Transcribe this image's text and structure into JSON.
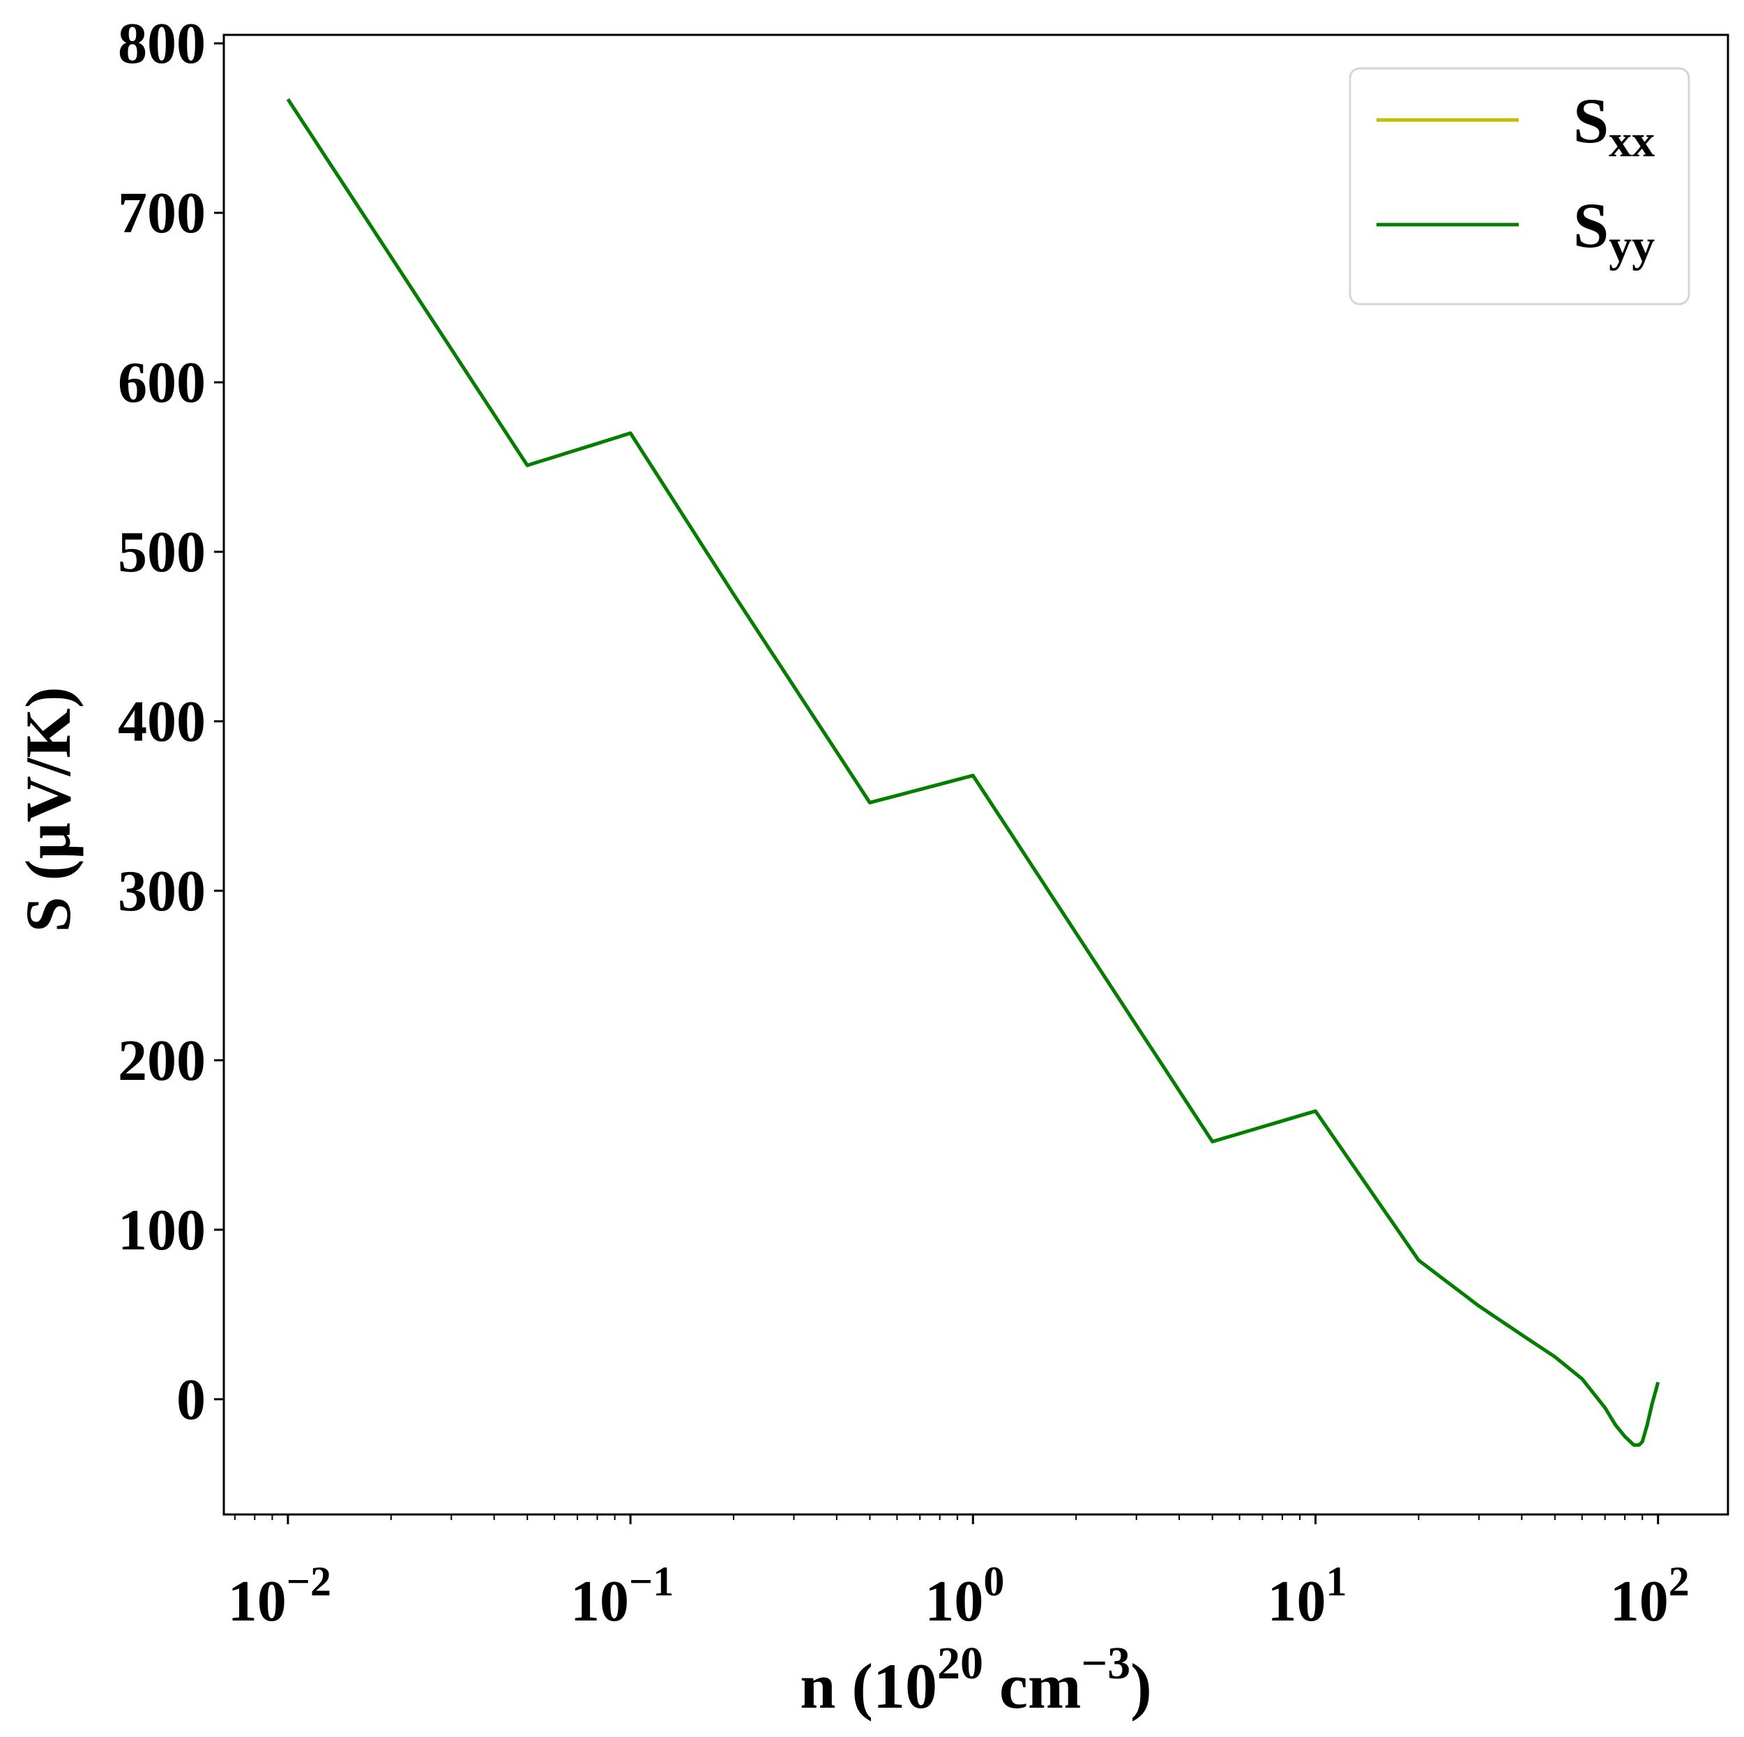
{
  "chart_data": {
    "type": "line",
    "x_scale": "log",
    "xlim": [
      0.0065,
      160
    ],
    "ylim": [
      -68,
      805
    ],
    "x_ticks": [
      {
        "value": 0.01,
        "base": "10",
        "exp": "−2"
      },
      {
        "value": 0.1,
        "base": "10",
        "exp": "−1"
      },
      {
        "value": 1,
        "base": "10",
        "exp": "0"
      },
      {
        "value": 10,
        "base": "10",
        "exp": "1"
      },
      {
        "value": 100,
        "base": "10",
        "exp": "2"
      }
    ],
    "y_ticks": [
      "0",
      "100",
      "200",
      "300",
      "400",
      "500",
      "600",
      "700",
      "800"
    ],
    "xlabel": {
      "prefix": "n (10",
      "sup1": "20",
      "middle": " cm",
      "sup2": "−3",
      "suffix": ")"
    },
    "ylabel": "S (µV/K)",
    "grid": false,
    "legend_position": "top-right",
    "series": [
      {
        "name": "S",
        "subscript": "xx",
        "color": "#bfbf00",
        "x": [
          0.01,
          0.02,
          0.05,
          0.1,
          0.2,
          0.5,
          1,
          2,
          5,
          10,
          20,
          30,
          40,
          50,
          60,
          70,
          75,
          80,
          85,
          88,
          90,
          93,
          96,
          100
        ],
        "y": [
          767,
          674,
          551,
          570,
          475,
          352,
          368,
          275,
          152,
          170,
          82,
          55,
          38,
          25,
          12,
          -5,
          -15,
          -22,
          -27,
          -27,
          -25,
          -15,
          -3,
          10
        ]
      },
      {
        "name": "S",
        "subscript": "yy",
        "color": "#007f00",
        "x": [
          0.01,
          0.02,
          0.05,
          0.1,
          0.2,
          0.5,
          1,
          2,
          5,
          10,
          20,
          30,
          40,
          50,
          60,
          70,
          75,
          80,
          85,
          88,
          90,
          93,
          96,
          100
        ],
        "y": [
          767,
          674,
          551,
          570,
          475,
          352,
          368,
          275,
          152,
          170,
          82,
          55,
          38,
          25,
          12,
          -5,
          -15,
          -22,
          -27,
          -27,
          -25,
          -15,
          -3,
          10
        ]
      }
    ]
  }
}
